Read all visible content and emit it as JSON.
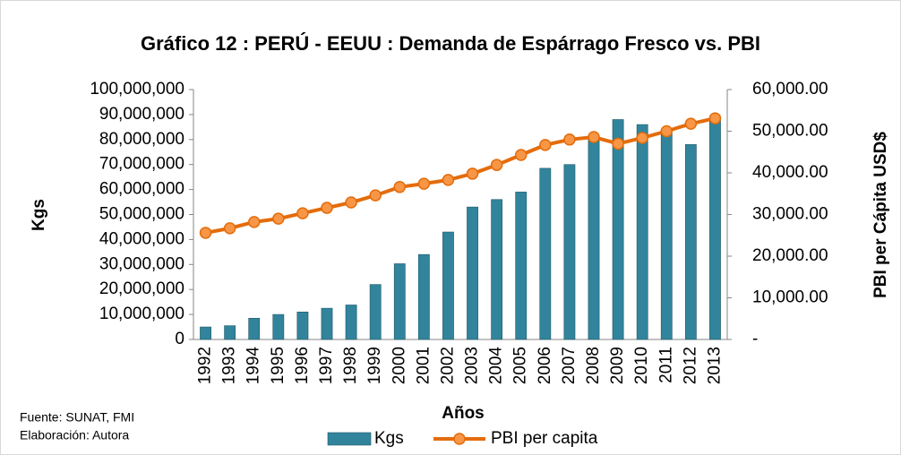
{
  "chart_data": {
    "type": "bar",
    "title": "Gráfico 12 : PERÚ - EEUU : Demanda de Espárrago Fresco vs. PBI",
    "y_label": "Kgs",
    "y2_label": "PBI per Cápita USD$",
    "x_label": "Años",
    "source": "Fuente: SUNAT, FMI",
    "credit": "Elaboración: Autora",
    "categories": [
      "1992",
      "1993",
      "1994",
      "1995",
      "1996",
      "1997",
      "1998",
      "1999",
      "2000",
      "2001",
      "2002",
      "2003",
      "2004",
      "2005",
      "2006",
      "2007",
      "2008",
      "2009",
      "2010",
      "2011",
      "2012",
      "2013"
    ],
    "series": [
      {
        "name": "Kgs",
        "type": "bar",
        "color": "#31849b",
        "values": [
          5000000,
          5500000,
          8500000,
          10000000,
          11000000,
          12500000,
          13800000,
          22000000,
          30300000,
          34000000,
          43000000,
          53000000,
          56000000,
          59000000,
          68500000,
          70000000,
          80000000,
          88000000,
          86000000,
          84000000,
          78000000,
          89000000
        ]
      },
      {
        "name": "PBI per capita",
        "type": "line",
        "axis": "y2",
        "color": "#e46c0a",
        "marker_color": "#f79646",
        "values": [
          25600,
          26700,
          28200,
          29000,
          30300,
          31600,
          32900,
          34600,
          36600,
          37400,
          38300,
          39800,
          41900,
          44300,
          46700,
          48000,
          48600,
          47000,
          48400,
          50000,
          51800,
          53100
        ]
      }
    ],
    "ylim": [
      0,
      100000000
    ],
    "yticks": [
      0,
      {
        "value": 10000000,
        "label": "10,000,000"
      },
      {
        "value": 20000000,
        "label": "20,000,000"
      },
      {
        "value": 30000000,
        "label": "30,000,000"
      },
      {
        "value": 40000000,
        "label": "40,000,000"
      },
      {
        "value": 50000000,
        "label": "50,000,000"
      },
      {
        "value": 60000000,
        "label": "60,000,000"
      },
      {
        "value": 70000000,
        "label": "70,000,000"
      },
      {
        "value": 80000000,
        "label": "80,000,000"
      },
      {
        "value": 90000000,
        "label": "90,000,000"
      },
      {
        "value": 100000000,
        "label": "100,000,000"
      }
    ],
    "y2lim": [
      0,
      60000
    ],
    "y2ticks": [
      {
        "value": 0,
        "label": "-"
      },
      {
        "value": 10000,
        "label": "10,000.00"
      },
      {
        "value": 20000,
        "label": "20,000.00"
      },
      {
        "value": 30000,
        "label": "30,000.00"
      },
      {
        "value": 40000,
        "label": "40,000.00"
      },
      {
        "value": 50000,
        "label": "50,000.00"
      },
      {
        "value": 60000,
        "label": "60,000.00"
      }
    ],
    "legend": "bottom"
  }
}
